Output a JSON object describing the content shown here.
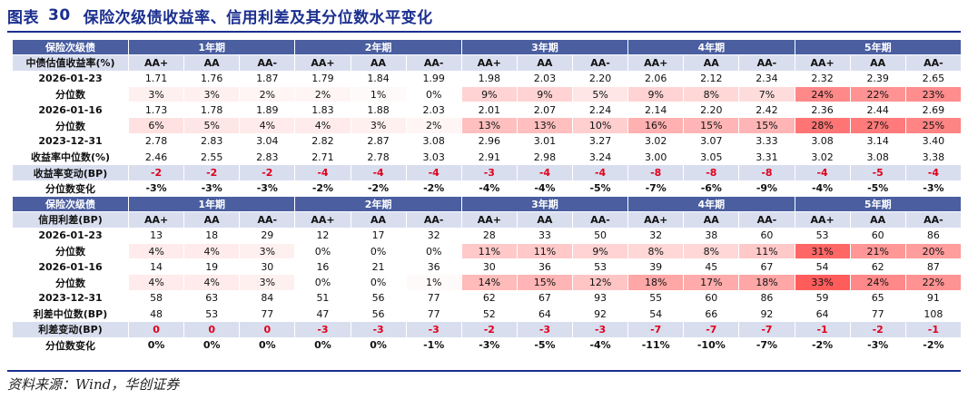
{
  "figure": {
    "label": "图表",
    "number": "30",
    "title": "保险次级债收益率、信用利差及其分位数水平变化"
  },
  "source": "资料来源：Wind，华创证券",
  "terms": [
    "1年期",
    "2年期",
    "3年期",
    "4年期",
    "5年期"
  ],
  "grades": [
    "AA+",
    "AA",
    "AA-"
  ],
  "yield_table": {
    "header_label": "保险次级债",
    "sub_label": "中债估值收益率(%)",
    "rows": [
      {
        "label": "2026-01-23",
        "type": "val",
        "cells": [
          "1.71",
          "1.76",
          "1.87",
          "1.79",
          "1.84",
          "1.99",
          "1.98",
          "2.03",
          "2.20",
          "2.06",
          "2.12",
          "2.34",
          "2.32",
          "2.39",
          "2.65"
        ]
      },
      {
        "label": "分位数",
        "type": "pct",
        "cells": [
          "3%",
          "3%",
          "2%",
          "2%",
          "1%",
          "0%",
          "9%",
          "9%",
          "5%",
          "9%",
          "8%",
          "7%",
          "24%",
          "22%",
          "23%"
        ]
      },
      {
        "label": "2026-01-16",
        "type": "val",
        "cells": [
          "1.73",
          "1.78",
          "1.89",
          "1.83",
          "1.88",
          "2.03",
          "2.01",
          "2.07",
          "2.24",
          "2.14",
          "2.20",
          "2.42",
          "2.36",
          "2.44",
          "2.69"
        ]
      },
      {
        "label": "分位数",
        "type": "pct",
        "cells": [
          "6%",
          "5%",
          "4%",
          "4%",
          "3%",
          "2%",
          "13%",
          "13%",
          "10%",
          "16%",
          "15%",
          "15%",
          "28%",
          "27%",
          "25%"
        ]
      },
      {
        "label": "2023-12-31",
        "type": "val",
        "cells": [
          "2.78",
          "2.83",
          "3.04",
          "2.82",
          "2.87",
          "3.08",
          "2.96",
          "3.01",
          "3.27",
          "3.02",
          "3.07",
          "3.33",
          "3.08",
          "3.14",
          "3.40"
        ]
      },
      {
        "label": "收益率中位数(%)",
        "type": "val",
        "cells": [
          "2.46",
          "2.55",
          "2.83",
          "2.71",
          "2.78",
          "3.03",
          "2.91",
          "2.98",
          "3.24",
          "3.00",
          "3.05",
          "3.31",
          "3.02",
          "3.08",
          "3.38"
        ]
      },
      {
        "label": "收益率变动(BP)",
        "type": "chg",
        "cells": [
          "-2",
          "-2",
          "-2",
          "-4",
          "-4",
          "-4",
          "-3",
          "-4",
          "-4",
          "-8",
          "-8",
          "-8",
          "-4",
          "-5",
          "-4"
        ]
      },
      {
        "label": "分位数变化",
        "type": "chg2",
        "cells": [
          "-3%",
          "-3%",
          "-3%",
          "-2%",
          "-2%",
          "-2%",
          "-4%",
          "-4%",
          "-5%",
          "-7%",
          "-6%",
          "-9%",
          "-4%",
          "-5%",
          "-3%"
        ]
      }
    ]
  },
  "spread_table": {
    "header_label": "保险次级债",
    "sub_label": "信用利差(BP)",
    "rows": [
      {
        "label": "2026-01-23",
        "type": "val",
        "cells": [
          "13",
          "18",
          "29",
          "12",
          "17",
          "32",
          "28",
          "33",
          "50",
          "32",
          "38",
          "60",
          "53",
          "60",
          "86"
        ]
      },
      {
        "label": "分位数",
        "type": "pct",
        "cells": [
          "4%",
          "4%",
          "3%",
          "0%",
          "0%",
          "0%",
          "11%",
          "11%",
          "9%",
          "8%",
          "8%",
          "11%",
          "31%",
          "21%",
          "20%"
        ]
      },
      {
        "label": "2026-01-16",
        "type": "val",
        "cells": [
          "14",
          "19",
          "30",
          "16",
          "21",
          "36",
          "30",
          "36",
          "53",
          "39",
          "45",
          "67",
          "54",
          "62",
          "87"
        ]
      },
      {
        "label": "分位数",
        "type": "pct",
        "cells": [
          "4%",
          "4%",
          "3%",
          "0%",
          "0%",
          "1%",
          "14%",
          "15%",
          "12%",
          "18%",
          "17%",
          "18%",
          "33%",
          "24%",
          "22%"
        ]
      },
      {
        "label": "2023-12-31",
        "type": "val",
        "cells": [
          "58",
          "63",
          "84",
          "51",
          "56",
          "77",
          "62",
          "67",
          "93",
          "55",
          "60",
          "86",
          "59",
          "65",
          "91"
        ]
      },
      {
        "label": "利差中位数(BP)",
        "type": "val",
        "cells": [
          "48",
          "53",
          "77",
          "47",
          "56",
          "77",
          "52",
          "64",
          "92",
          "54",
          "66",
          "92",
          "64",
          "77",
          "108"
        ]
      },
      {
        "label": "利差变动(BP)",
        "type": "chg",
        "cells": [
          "0",
          "0",
          "0",
          "-3",
          "-3",
          "-3",
          "-2",
          "-3",
          "-3",
          "-7",
          "-7",
          "-7",
          "-1",
          "-2",
          "-1"
        ]
      },
      {
        "label": "分位数变化",
        "type": "chg2",
        "cells": [
          "0%",
          "0%",
          "0%",
          "0%",
          "0%",
          "-1%",
          "-3%",
          "-5%",
          "-4%",
          "-11%",
          "-10%",
          "-7%",
          "-2%",
          "-3%",
          "-2%"
        ]
      }
    ]
  }
}
